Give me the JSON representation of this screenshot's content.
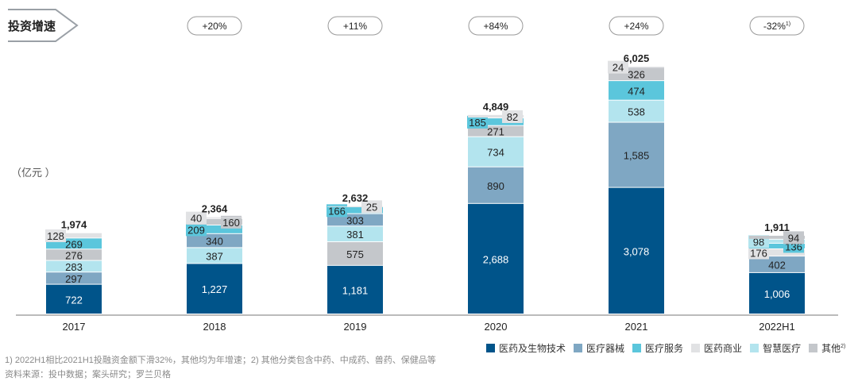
{
  "header": {
    "title": "投资增速",
    "unit": "（亿元 ）"
  },
  "growth": [
    "+20%",
    "+11%",
    "+84%",
    "+24%",
    "-32%"
  ],
  "growth_sup": [
    "",
    "",
    "",
    "",
    "1)"
  ],
  "chart_data": {
    "type": "bar",
    "stacked": true,
    "categories": [
      "2017",
      "2018",
      "2019",
      "2020",
      "2021",
      "2022H1"
    ],
    "totals": [
      "1,974",
      "2,364",
      "2,632",
      "4,849",
      "6,025",
      "1,911"
    ],
    "series": [
      {
        "name": "医药及生物技术",
        "color": "#00548a",
        "values": [
          722,
          1227,
          1181,
          2688,
          3078,
          1006
        ]
      },
      {
        "name": "医疗器械",
        "color": "#7fa7c3",
        "values": [
          297,
          340,
          303,
          890,
          1585,
          402
        ]
      },
      {
        "name": "医疗服务",
        "color": "#5bc6dc",
        "values": [
          269,
          209,
          166,
          185,
          474,
          136
        ]
      },
      {
        "name": "医药商业",
        "color": "#e1e2e4",
        "values": [
          128,
          40,
          25,
          82,
          24,
          176
        ]
      },
      {
        "name": "智慧医疗",
        "color": "#b3e4ee",
        "values": [
          283,
          387,
          381,
          734,
          538,
          98
        ]
      },
      {
        "name": "其他",
        "color": "#c4c7cb",
        "values": [
          276,
          160,
          575,
          271,
          326,
          94
        ]
      }
    ],
    "stack_order": [
      [
        0,
        1,
        4,
        5,
        2,
        3
      ],
      [
        0,
        4,
        1,
        2,
        5,
        3
      ],
      [
        0,
        5,
        4,
        1,
        2,
        3
      ],
      [
        0,
        1,
        4,
        5,
        2,
        3
      ],
      [
        0,
        1,
        4,
        2,
        5,
        3
      ],
      [
        0,
        1,
        3,
        2,
        4,
        5
      ]
    ],
    "legend_sup": [
      "",
      "",
      "",
      "",
      "",
      "2)"
    ],
    "legend_position": "bottom-right",
    "grid": false
  },
  "footnotes": {
    "note": "1) 2022H1相比2021H1投融资金额下滑32%，其他均为年增速；2) 其他分类包含中药、中成药、兽药、保健品等",
    "source": "资料来源：投中数据；案头研究；罗兰贝格"
  }
}
